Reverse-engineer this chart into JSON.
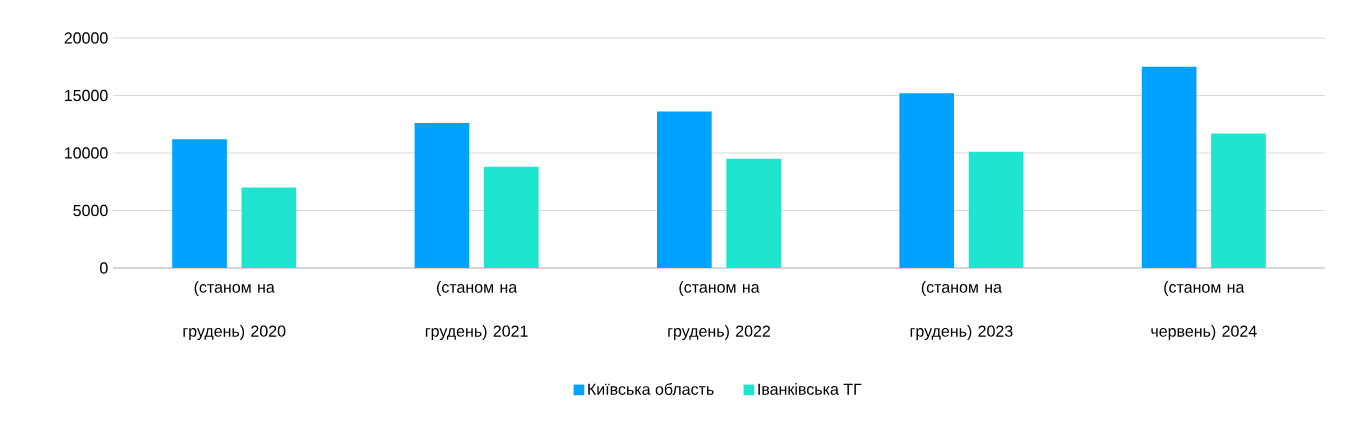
{
  "chart_data": {
    "type": "bar",
    "categories": [
      "(станом на грудень) 2020",
      "(станом на грудень) 2021",
      "(станом на грудень) 2022",
      "(станом на грудень) 2023",
      "(станом на червень) 2024"
    ],
    "series": [
      {
        "name": "Київська область",
        "color": "#00a2ff",
        "values": [
          11200,
          12600,
          13600,
          15200,
          17500
        ]
      },
      {
        "name": "Іванківська ТГ",
        "color": "#1de5cf",
        "values": [
          7000,
          8800,
          9500,
          10100,
          11700
        ]
      }
    ],
    "ylim": [
      0,
      20000
    ],
    "yticks": [
      0,
      5000,
      10000,
      15000,
      20000
    ],
    "grid": "y",
    "legend": "bottom"
  }
}
